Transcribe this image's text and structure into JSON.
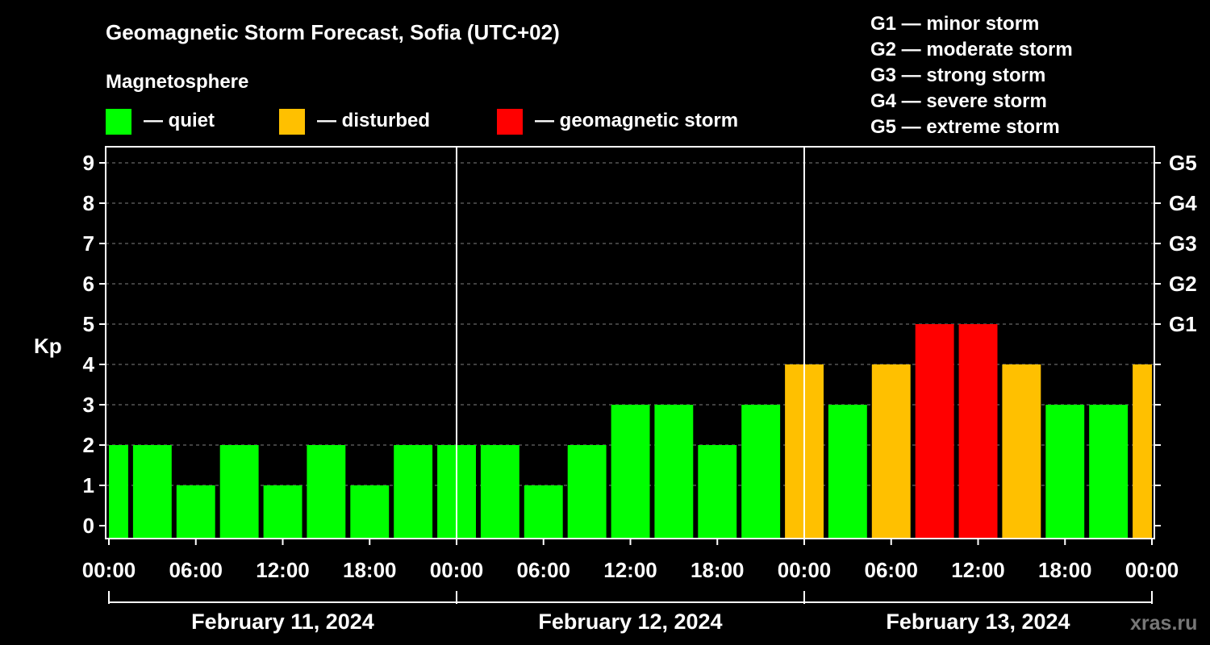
{
  "chart_data": {
    "type": "bar",
    "title": "Geomagnetic Storm Forecast, Sofia (UTC+02)",
    "subtitle": "Magnetosphere",
    "ylabel": "Kp",
    "ylim": [
      0,
      9
    ],
    "y_ticks": [
      "0",
      "1",
      "2",
      "3",
      "4",
      "5",
      "6",
      "7",
      "8",
      "9"
    ],
    "right_axis_labels": [
      {
        "kp": 5,
        "label": "G1"
      },
      {
        "kp": 6,
        "label": "G2"
      },
      {
        "kp": 7,
        "label": "G3"
      },
      {
        "kp": 8,
        "label": "G4"
      },
      {
        "kp": 9,
        "label": "G5"
      }
    ],
    "x_ticks": [
      "00:00",
      "06:00",
      "12:00",
      "18:00",
      "00:00",
      "06:00",
      "12:00",
      "18:00",
      "00:00",
      "06:00",
      "12:00",
      "18:00",
      "00:00"
    ],
    "days": [
      "February 11, 2024",
      "February 12, 2024",
      "February 13, 2024"
    ],
    "interval_hours": 3,
    "values": [
      2,
      2,
      1,
      2,
      1,
      2,
      1,
      2,
      2,
      2,
      1,
      2,
      3,
      3,
      2,
      3,
      4,
      3,
      4,
      5,
      5,
      4,
      3,
      3,
      4
    ],
    "levels": [
      {
        "name": "quiet",
        "label": "— quiet",
        "color": "#00ff00"
      },
      {
        "name": "disturbed",
        "label": "— disturbed",
        "color": "#ffc000"
      },
      {
        "name": "storm",
        "label": "— geomagnetic storm",
        "color": "#ff0000"
      }
    ],
    "storm_scale": [
      "G1 — minor storm",
      "G2 — moderate storm",
      "G3 — strong storm",
      "G4 — severe storm",
      "G5 — extreme storm"
    ],
    "watermark": "xras.ru",
    "grid": true
  }
}
